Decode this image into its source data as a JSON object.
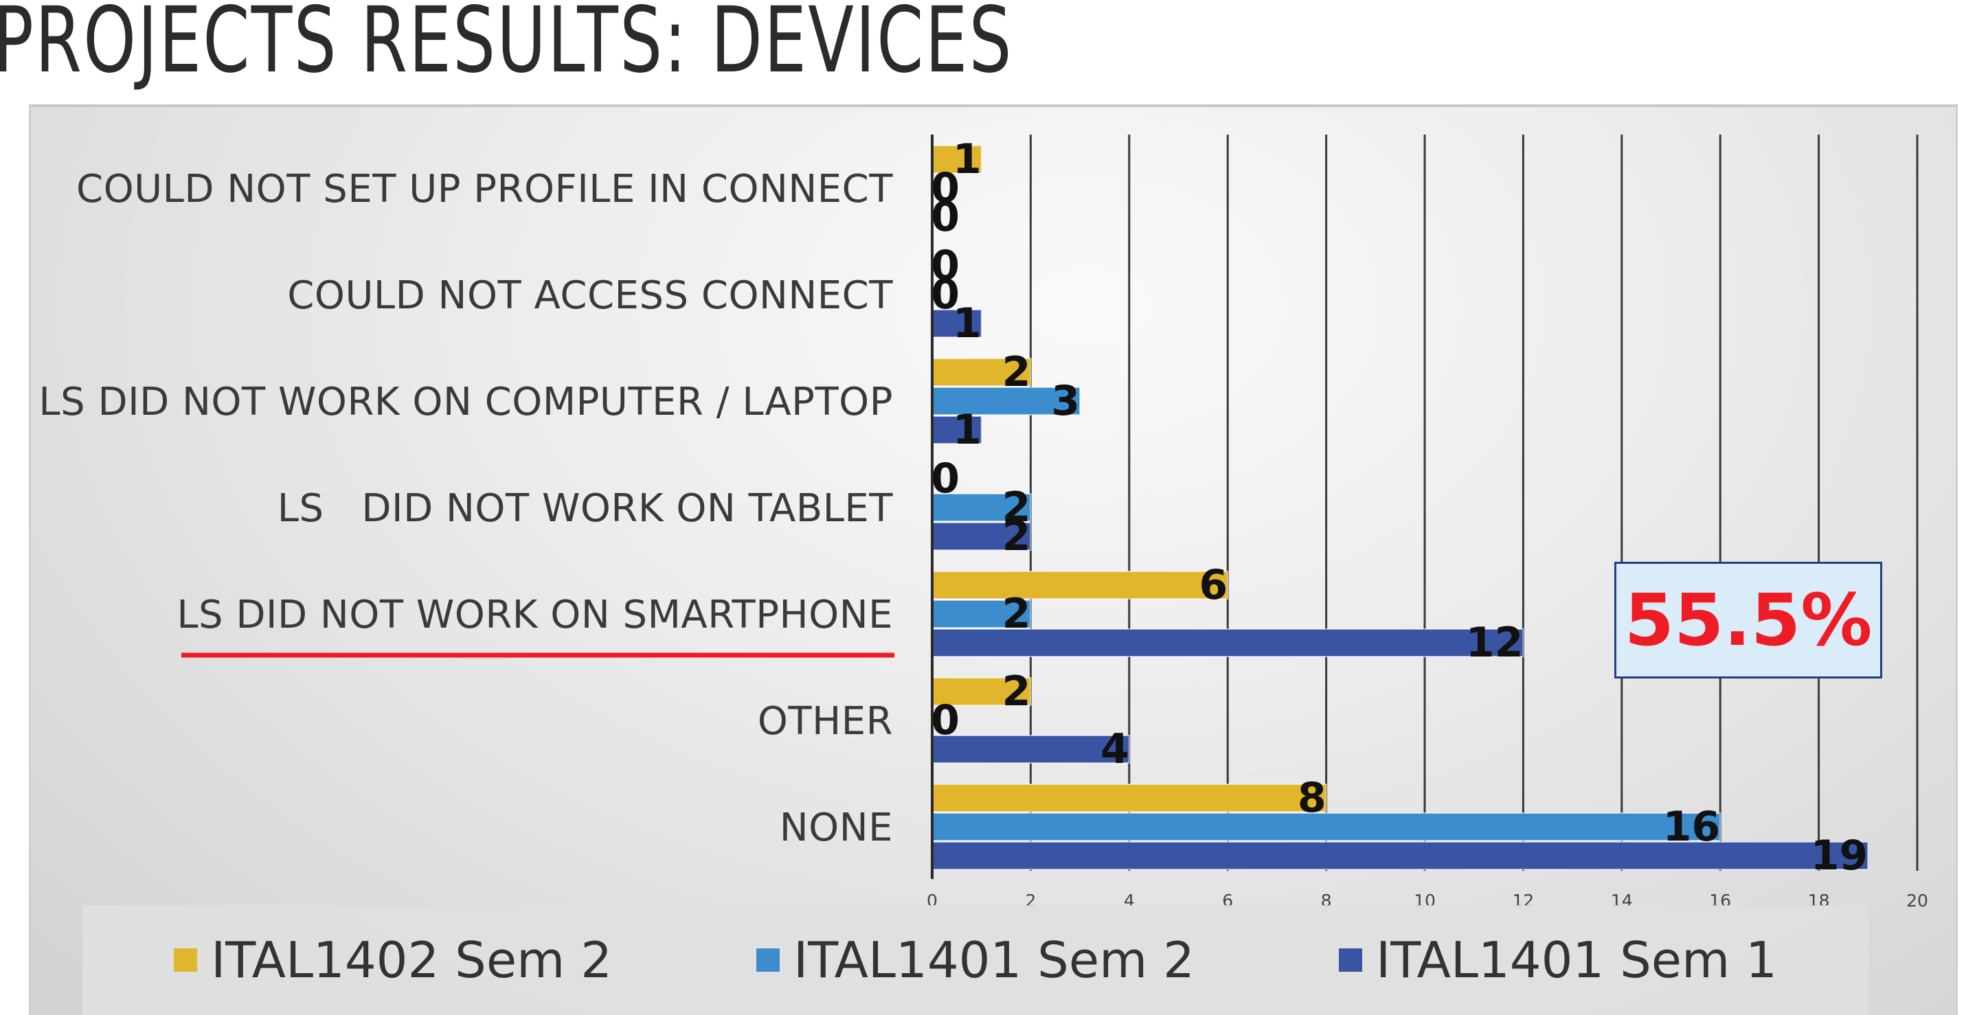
{
  "title": "PROJECTS RESULTS: DEVICES",
  "callout": {
    "text": "55.5%",
    "color": "#ee1c25"
  },
  "chart_data": {
    "type": "bar",
    "orientation": "horizontal",
    "categories": [
      "COULD NOT SET UP PROFILE IN CONNECT",
      "COULD NOT ACCESS CONNECT",
      "LS DID NOT WORK ON COMPUTER / LAPTOP",
      "LS   DID NOT WORK ON TABLET",
      "LS DID NOT WORK ON SMARTPHONE",
      "OTHER",
      "NONE"
    ],
    "series": [
      {
        "name": "ITAL1402 Sem 2",
        "color": "#e1b52c",
        "values": [
          1,
          0,
          2,
          0,
          6,
          2,
          8
        ]
      },
      {
        "name": "ITAL1401 Sem 2",
        "color": "#3b8dce",
        "values": [
          0,
          0,
          3,
          2,
          2,
          0,
          16
        ]
      },
      {
        "name": "ITAL1401 Sem 1",
        "color": "#3a54a4",
        "values": [
          0,
          1,
          1,
          2,
          12,
          4,
          19
        ]
      }
    ],
    "xlim": [
      0,
      20
    ],
    "xticks": [
      0,
      2,
      4,
      6,
      8,
      10,
      12,
      14,
      16,
      18,
      20
    ],
    "highlighted_category": "LS DID NOT WORK ON SMARTPHONE",
    "highlight_color": "#ee1c25",
    "grid": true,
    "legend_position": "bottom"
  }
}
